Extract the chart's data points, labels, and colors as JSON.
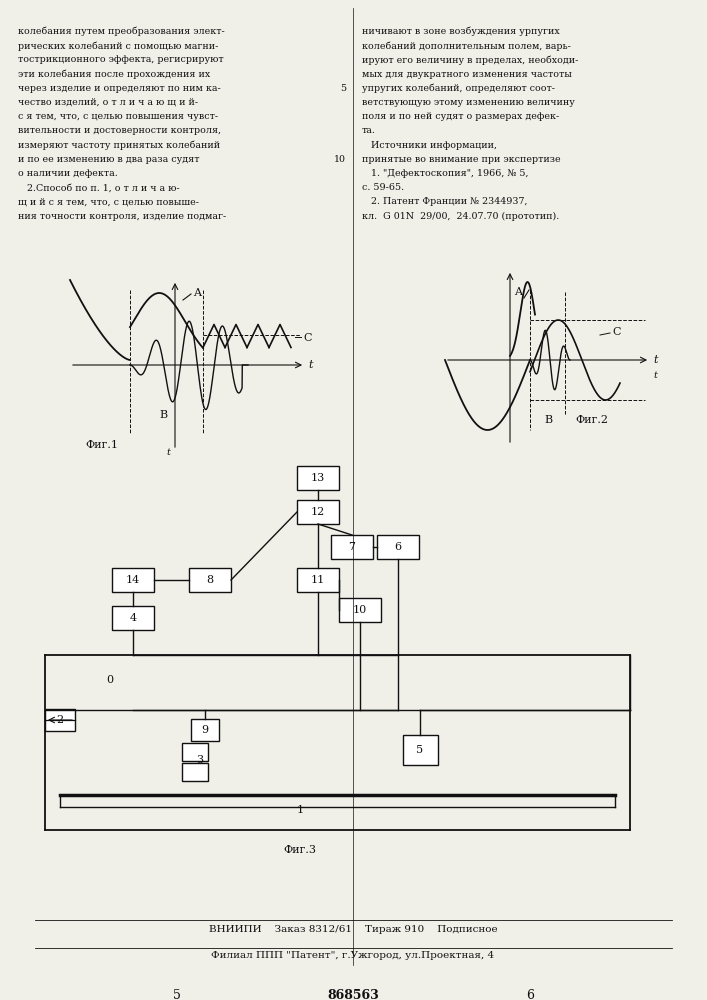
{
  "page_bg": "#f0efe8",
  "text_color": "#111111",
  "line_color": "#111111",
  "header_num": "868563",
  "col5": "5",
  "col6": "6",
  "left_col": [
    "колебания путем преобразования элект-",
    "рических колебаний с помощью магни-",
    "тострикционного эффекта, регисрируют",
    "эти колебания после прохождения их",
    "через изделие и определяют по ним ка-",
    "чество изделий, о т л и ч а ю щ и й-",
    "с я тем, что, с целью повышения чувст-",
    "вительности и достоверности контроля,",
    "измеряют частоту принятых колебаний",
    "и по ее изменению в два раза судят",
    "о наличии дефекта.",
    "   2.Способ по п. 1, о т л и ч а ю-",
    "щ и й с я тем, что, с целью повыше-",
    "ния точности контроля, изделие подмаг-"
  ],
  "right_col": [
    "ничивают в зоне возбуждения урпугих",
    "колебаний дополнительным полем, варь-",
    "ируют его величину в пределах, необходи-",
    "мых для двукратного изменения частоты",
    "упругих колебаний, определяют соот-",
    "ветствующую этому изменению величину",
    "поля и по ней судят о размерах дефек-",
    "та.",
    "   Источники информации,",
    "принятые во внимание при экспертизе",
    "   1. \"Дефектоскопия\", 1966, № 5,",
    "с. 59-65.",
    "   2. Патент Франции № 2344937,",
    "кл.  G 01N  29/00,  24.07.70 (прототип)."
  ],
  "fig1_label": "Фиг.1",
  "fig2_label": "Фиг.2",
  "fig3_label": "Фиг.3",
  "bottom1": "ВНИИПИ    Заказ 8312/61    Тираж 910    Подписное",
  "bottom2": "Филиал ППП \"Патент\", г.Ужгород, ул.Проектная, 4"
}
